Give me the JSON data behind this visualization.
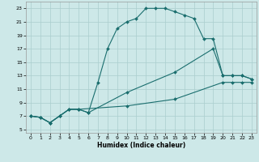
{
  "xlabel": "Humidex (Indice chaleur)",
  "bg_color": "#cde8e8",
  "grid_color": "#aacece",
  "line_color": "#1a6e6e",
  "xlim": [
    -0.5,
    23.5
  ],
  "ylim": [
    4.5,
    24.0
  ],
  "xticks": [
    0,
    1,
    2,
    3,
    4,
    5,
    6,
    7,
    8,
    9,
    10,
    11,
    12,
    13,
    14,
    15,
    16,
    17,
    18,
    19,
    20,
    21,
    22,
    23
  ],
  "yticks": [
    5,
    7,
    9,
    11,
    13,
    15,
    17,
    19,
    21,
    23
  ],
  "line1_x": [
    0,
    1,
    2,
    3,
    4,
    5,
    6,
    7,
    8,
    9,
    10,
    11,
    12,
    13,
    14,
    15,
    16,
    17,
    18,
    19,
    20,
    21,
    22,
    23
  ],
  "line1_y": [
    7,
    6.8,
    6,
    7,
    8,
    8,
    7.5,
    12,
    17,
    20,
    21,
    21.5,
    23,
    23,
    23,
    22.5,
    22,
    21.5,
    18.5,
    18.5,
    13,
    13,
    13,
    12.5
  ],
  "line2_x": [
    0,
    1,
    2,
    3,
    4,
    5,
    6,
    10,
    15,
    19,
    20,
    21,
    22,
    23
  ],
  "line2_y": [
    7,
    6.8,
    6,
    7,
    8,
    8,
    7.5,
    10.5,
    13.5,
    17,
    13,
    13,
    13,
    12.5
  ],
  "line3_x": [
    0,
    1,
    2,
    3,
    4,
    5,
    10,
    15,
    20,
    21,
    22,
    23
  ],
  "line3_y": [
    7,
    6.8,
    6,
    7,
    8,
    8,
    8.5,
    9.5,
    12,
    12,
    12,
    12
  ]
}
